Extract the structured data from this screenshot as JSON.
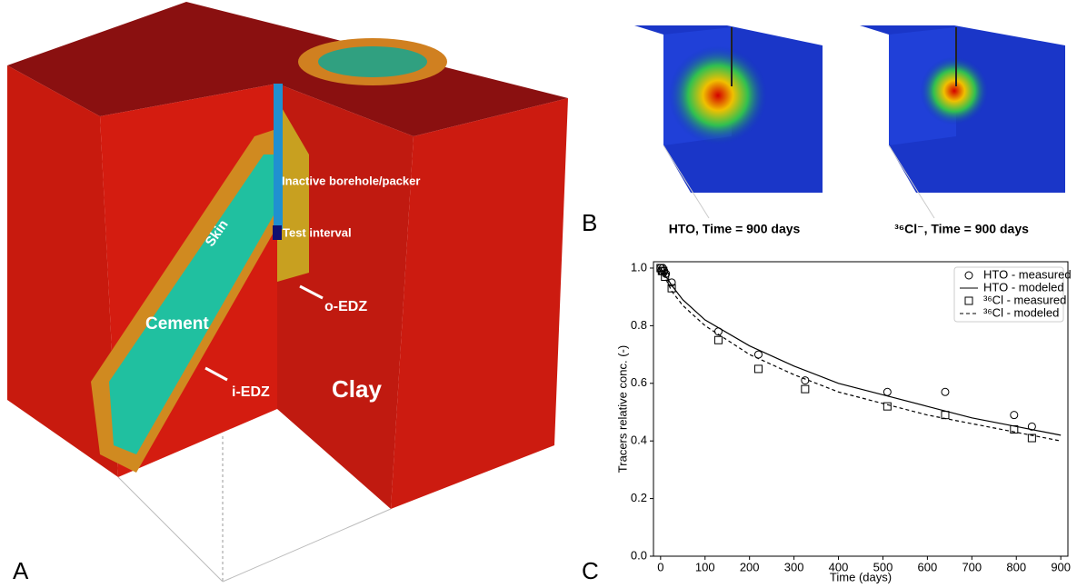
{
  "figure": {
    "panel_labels": [
      "A",
      "B",
      "C"
    ],
    "panel_a": {
      "borehole": "Inactive borehole/packer",
      "interval": "Test interval",
      "skin": "Skin",
      "cement": "Cement",
      "o_edz": "o-EDZ",
      "i_edz": "i-EDZ",
      "clay": "Clay"
    },
    "panel_b": {
      "captions": [
        "HTO, Time = 900 days",
        "³⁶Cl⁻, Time = 900 days"
      ]
    }
  },
  "chart_data": {
    "type": "scatter-line",
    "xlabel": "Time (days)",
    "ylabel": "Tracers relative conc. (-)",
    "xlim": [
      -16,
      916
    ],
    "ylim": [
      0,
      1.022
    ],
    "xticks": [
      0,
      100,
      200,
      300,
      400,
      500,
      600,
      700,
      800,
      900
    ],
    "yticks": [
      {
        "value": 0,
        "label": "0.0"
      },
      {
        "value": 0.2,
        "label": "0.2"
      },
      {
        "value": 0.4,
        "label": "0.4"
      },
      {
        "value": 0.6,
        "label": "0.6"
      },
      {
        "value": 0.8,
        "label": "0.8"
      },
      {
        "value": 1,
        "label": "1.0"
      }
    ],
    "legend": "upper right",
    "series": [
      {
        "name": "HTO - measured",
        "color": "#000000",
        "marker": "circle",
        "x": [
          0,
          2,
          5,
          8,
          12,
          25,
          130,
          220,
          325,
          510,
          640,
          795,
          835
        ],
        "values": [
          1.0,
          0.99,
          1.0,
          0.99,
          0.98,
          0.95,
          0.78,
          0.7,
          0.61,
          0.57,
          0.57,
          0.49,
          0.45
        ]
      },
      {
        "name": "HTO - modeled",
        "color": "#000000",
        "line": "solid",
        "x": [
          0,
          25,
          50,
          100,
          200,
          300,
          400,
          500,
          600,
          700,
          800,
          900
        ],
        "values": [
          1.0,
          0.94,
          0.89,
          0.82,
          0.73,
          0.66,
          0.6,
          0.56,
          0.52,
          0.48,
          0.45,
          0.42
        ]
      },
      {
        "name": "³⁶Cl - measured",
        "color": "#000000",
        "marker": "square",
        "x": [
          0,
          3,
          6,
          10,
          25,
          130,
          220,
          325,
          510,
          640,
          795,
          835
        ],
        "values": [
          1.0,
          0.99,
          0.99,
          0.97,
          0.93,
          0.75,
          0.65,
          0.58,
          0.52,
          0.49,
          0.44,
          0.41
        ]
      },
      {
        "name": "³⁶Cl - modeled",
        "color": "#000000",
        "line": "dashed",
        "x": [
          0,
          25,
          50,
          100,
          200,
          300,
          400,
          500,
          600,
          700,
          800,
          900
        ],
        "values": [
          1.0,
          0.92,
          0.87,
          0.8,
          0.7,
          0.63,
          0.57,
          0.53,
          0.49,
          0.46,
          0.43,
          0.4
        ]
      }
    ]
  }
}
